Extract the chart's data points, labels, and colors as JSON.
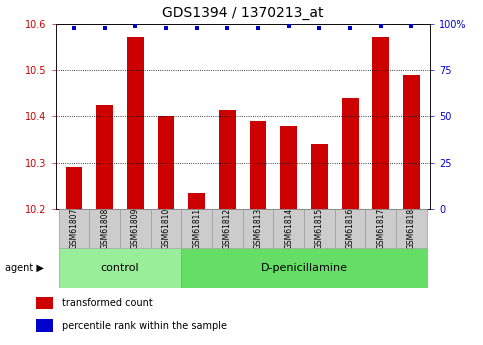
{
  "title": "GDS1394 / 1370213_at",
  "samples": [
    "GSM61807",
    "GSM61808",
    "GSM61809",
    "GSM61810",
    "GSM61811",
    "GSM61812",
    "GSM61813",
    "GSM61814",
    "GSM61815",
    "GSM61816",
    "GSM61817",
    "GSM61818"
  ],
  "bar_values": [
    10.29,
    10.425,
    10.572,
    10.4,
    10.235,
    10.415,
    10.39,
    10.38,
    10.34,
    10.44,
    10.572,
    10.49
  ],
  "percentile_values": [
    98,
    98,
    99,
    98,
    98,
    98,
    98,
    99,
    98,
    98,
    99,
    99
  ],
  "bar_color": "#cc0000",
  "dot_color": "#0000cc",
  "ylim_left": [
    10.2,
    10.6
  ],
  "ylim_right": [
    0,
    100
  ],
  "yticks_left": [
    10.2,
    10.3,
    10.4,
    10.5,
    10.6
  ],
  "ytick_labels_left": [
    "10.2",
    "10.3",
    "10.4",
    "10.5",
    "10.6"
  ],
  "yticks_right": [
    0,
    25,
    50,
    75,
    100
  ],
  "ytick_labels_right": [
    "0",
    "25",
    "50",
    "75",
    "100%"
  ],
  "groups": [
    {
      "label": "control",
      "start": 0,
      "end": 4,
      "color": "#99ee99"
    },
    {
      "label": "D-penicillamine",
      "start": 4,
      "end": 12,
      "color": "#66dd66"
    }
  ],
  "agent_label": "agent",
  "legend_items": [
    {
      "color": "#cc0000",
      "marker": "s",
      "label": "transformed count"
    },
    {
      "color": "#0000cc",
      "marker": "s",
      "label": "percentile rank within the sample"
    }
  ],
  "bar_width": 0.55,
  "tick_bg_color": "#cccccc",
  "bg_color": "#ffffff",
  "title_fontsize": 10,
  "tick_fontsize": 7,
  "sample_fontsize": 5.5,
  "group_fontsize": 8,
  "legend_fontsize": 7
}
